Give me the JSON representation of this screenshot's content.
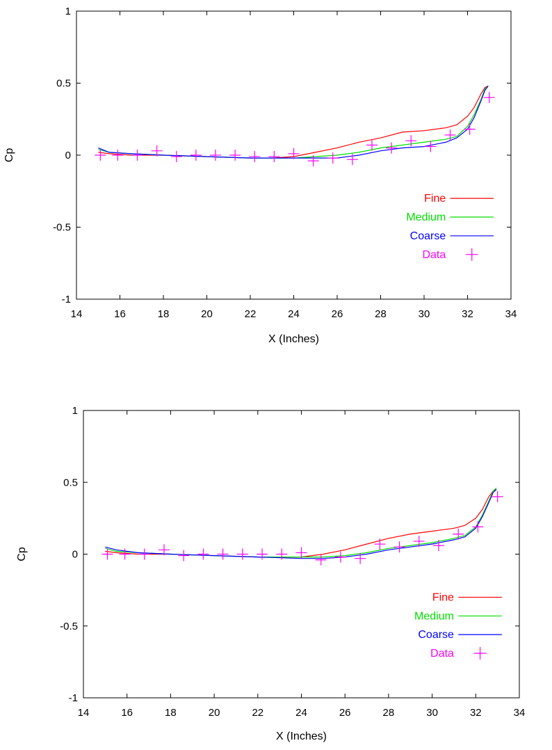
{
  "chart_data": [
    {
      "type": "line",
      "xlabel": "X (Inches)",
      "ylabel": "Cp",
      "xlim": [
        14,
        34
      ],
      "ylim": [
        -1,
        1
      ],
      "xticks": [
        "14",
        "16",
        "18",
        "20",
        "22",
        "24",
        "26",
        "28",
        "30",
        "32",
        "34"
      ],
      "yticks": [
        "-1",
        "-0.5",
        "0",
        "0.5",
        "1"
      ],
      "legend_position": "lower-right inside plot",
      "series": [
        {
          "name": "Fine",
          "color": "#ff0000",
          "style": "line",
          "x": [
            15.0,
            15.5,
            16.5,
            18.0,
            20.0,
            22.0,
            23.0,
            24.0,
            25.0,
            26.0,
            27.0,
            28.0,
            29.0,
            30.0,
            31.0,
            31.5,
            32.0,
            32.3,
            32.6,
            32.8,
            32.95
          ],
          "y": [
            0.02,
            0.01,
            0.0,
            0.0,
            -0.01,
            -0.02,
            -0.02,
            -0.01,
            0.02,
            0.05,
            0.09,
            0.12,
            0.16,
            0.17,
            0.19,
            0.21,
            0.27,
            0.33,
            0.42,
            0.47,
            0.48
          ]
        },
        {
          "name": "Medium",
          "color": "#00dd00",
          "style": "line",
          "x": [
            15.0,
            15.5,
            16.5,
            18.0,
            20.0,
            22.0,
            24.0,
            25.0,
            26.0,
            27.0,
            28.0,
            29.0,
            30.0,
            31.0,
            31.5,
            32.0,
            32.3,
            32.6,
            32.8,
            32.95
          ],
          "y": [
            0.04,
            0.02,
            0.01,
            0.0,
            -0.01,
            -0.02,
            -0.02,
            -0.01,
            0.0,
            0.02,
            0.05,
            0.07,
            0.09,
            0.11,
            0.13,
            0.2,
            0.28,
            0.38,
            0.46,
            0.48
          ]
        },
        {
          "name": "Coarse",
          "color": "#0000ff",
          "style": "line",
          "x": [
            15.0,
            15.5,
            16.5,
            18.0,
            20.0,
            22.0,
            24.0,
            25.0,
            26.0,
            27.0,
            28.0,
            29.0,
            30.0,
            31.0,
            31.5,
            32.0,
            32.3,
            32.6,
            32.8,
            32.95
          ],
          "y": [
            0.05,
            0.02,
            0.01,
            0.0,
            -0.01,
            -0.02,
            -0.02,
            -0.02,
            -0.02,
            0.0,
            0.03,
            0.05,
            0.06,
            0.09,
            0.12,
            0.18,
            0.26,
            0.37,
            0.45,
            0.48
          ]
        },
        {
          "name": "Data",
          "color": "#ff00ff",
          "style": "points",
          "x": [
            15.1,
            15.9,
            16.8,
            17.7,
            18.6,
            19.5,
            20.4,
            21.3,
            22.2,
            23.1,
            24.0,
            24.9,
            25.8,
            26.7,
            27.6,
            28.5,
            29.4,
            30.3,
            31.2,
            32.1,
            33.0
          ],
          "y": [
            0.0,
            0.0,
            0.0,
            0.03,
            -0.01,
            0.0,
            0.0,
            0.0,
            -0.01,
            -0.01,
            0.01,
            -0.04,
            -0.02,
            -0.03,
            0.07,
            0.05,
            0.1,
            0.06,
            0.14,
            0.18,
            0.4
          ]
        }
      ]
    },
    {
      "type": "line",
      "xlabel": "X (Inches)",
      "ylabel": "Cp",
      "xlim": [
        14,
        34
      ],
      "ylim": [
        -1,
        1
      ],
      "xticks": [
        "14",
        "16",
        "18",
        "20",
        "22",
        "24",
        "26",
        "28",
        "30",
        "32",
        "34"
      ],
      "yticks": [
        "-1",
        "-0.5",
        "0",
        "0.5",
        "1"
      ],
      "legend_position": "lower-right inside plot",
      "series": [
        {
          "name": "Fine",
          "color": "#ff0000",
          "style": "line",
          "x": [
            15.0,
            15.5,
            16.5,
            18.0,
            20.0,
            22.0,
            23.0,
            24.0,
            25.0,
            26.0,
            27.0,
            28.0,
            29.0,
            30.0,
            31.0,
            31.5,
            32.0,
            32.3,
            32.6,
            32.8,
            32.95
          ],
          "y": [
            0.02,
            0.01,
            0.0,
            0.0,
            -0.01,
            -0.02,
            -0.02,
            -0.02,
            0.0,
            0.03,
            0.07,
            0.11,
            0.14,
            0.16,
            0.18,
            0.2,
            0.25,
            0.31,
            0.4,
            0.44,
            0.45
          ]
        },
        {
          "name": "Medium",
          "color": "#00dd00",
          "style": "line",
          "x": [
            15.0,
            15.5,
            16.5,
            18.0,
            20.0,
            22.0,
            24.0,
            25.0,
            26.0,
            27.0,
            28.0,
            29.0,
            30.0,
            31.0,
            31.5,
            32.0,
            32.3,
            32.6,
            32.8,
            32.95
          ],
          "y": [
            0.04,
            0.02,
            0.01,
            0.0,
            -0.01,
            -0.02,
            -0.02,
            -0.02,
            -0.01,
            0.01,
            0.04,
            0.06,
            0.08,
            0.11,
            0.13,
            0.19,
            0.27,
            0.37,
            0.44,
            0.46
          ]
        },
        {
          "name": "Coarse",
          "color": "#0000ff",
          "style": "line",
          "x": [
            15.0,
            15.5,
            16.5,
            18.0,
            20.0,
            22.0,
            24.0,
            25.0,
            26.0,
            27.0,
            28.0,
            29.0,
            30.0,
            31.0,
            31.5,
            32.0,
            32.3,
            32.6,
            32.8,
            32.95
          ],
          "y": [
            0.05,
            0.03,
            0.01,
            0.0,
            -0.01,
            -0.02,
            -0.03,
            -0.03,
            -0.02,
            0.0,
            0.03,
            0.05,
            0.07,
            0.1,
            0.12,
            0.18,
            0.26,
            0.36,
            0.43,
            0.45
          ]
        },
        {
          "name": "Data",
          "color": "#ff00ff",
          "style": "points",
          "x": [
            15.1,
            15.9,
            16.8,
            17.7,
            18.6,
            19.5,
            20.4,
            21.3,
            22.2,
            23.1,
            24.0,
            24.9,
            25.8,
            26.7,
            27.6,
            28.5,
            29.4,
            30.3,
            31.2,
            32.1,
            33.0
          ],
          "y": [
            0.0,
            0.0,
            0.0,
            0.03,
            -0.01,
            0.0,
            0.0,
            0.0,
            0.0,
            0.0,
            0.01,
            -0.04,
            -0.02,
            -0.03,
            0.07,
            0.05,
            0.09,
            0.06,
            0.14,
            0.19,
            0.4
          ]
        }
      ]
    }
  ]
}
